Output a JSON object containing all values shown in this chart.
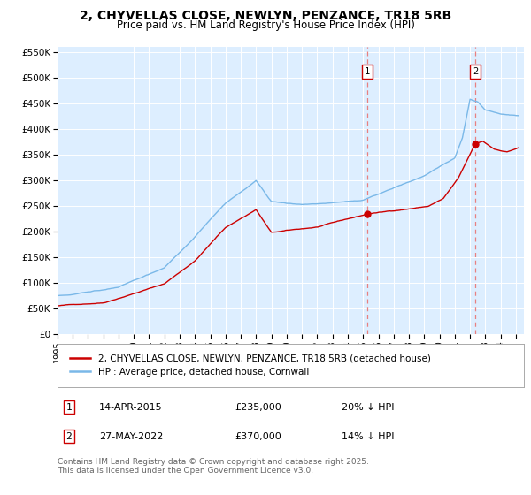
{
  "title": "2, CHYVELLAS CLOSE, NEWLYN, PENZANCE, TR18 5RB",
  "subtitle": "Price paid vs. HM Land Registry's House Price Index (HPI)",
  "ylim": [
    0,
    560000
  ],
  "yticks": [
    0,
    50000,
    100000,
    150000,
    200000,
    250000,
    300000,
    350000,
    400000,
    450000,
    500000,
    550000
  ],
  "ytick_labels": [
    "£0",
    "£50K",
    "£100K",
    "£150K",
    "£200K",
    "£250K",
    "£300K",
    "£350K",
    "£400K",
    "£450K",
    "£500K",
    "£550K"
  ],
  "bg_color": "#ddeeff",
  "grid_color": "#ffffff",
  "hpi_color": "#7ab8e8",
  "price_color": "#cc0000",
  "vline_color": "#e88080",
  "legend_label1": "2, CHYVELLAS CLOSE, NEWLYN, PENZANCE, TR18 5RB (detached house)",
  "legend_label2": "HPI: Average price, detached house, Cornwall",
  "annotation1_date": "14-APR-2015",
  "annotation1_price": "£235,000",
  "annotation1_pct": "20% ↓ HPI",
  "annotation2_date": "27-MAY-2022",
  "annotation2_price": "£370,000",
  "annotation2_pct": "14% ↓ HPI",
  "footer": "Contains HM Land Registry data © Crown copyright and database right 2025.\nThis data is licensed under the Open Government Licence v3.0.",
  "title_fontsize": 10,
  "subtitle_fontsize": 8.5,
  "tick_fontsize": 7.5,
  "legend_fontsize": 7.5,
  "annotation_fontsize": 8,
  "footer_fontsize": 6.5
}
